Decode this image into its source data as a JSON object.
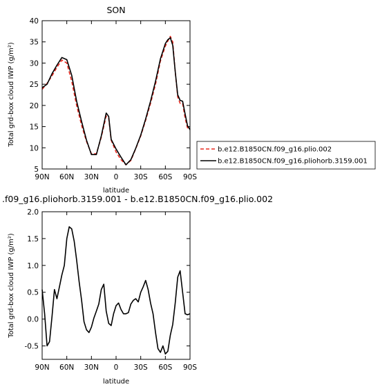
{
  "chart_data": [
    {
      "type": "line",
      "title": "SON",
      "xlabel": "latitude",
      "ylabel": "Total grd-box cloud IWP (g/m²)",
      "xlim": [
        90,
        -90
      ],
      "ylim": [
        5,
        40
      ],
      "x_ticks": [
        90,
        60,
        30,
        0,
        -30,
        -60,
        -90
      ],
      "x_tick_labels": [
        "90N",
        "60N",
        "30N",
        "0",
        "30S",
        "60S",
        "90S"
      ],
      "y_ticks": [
        5,
        10,
        15,
        20,
        25,
        30,
        35,
        40
      ],
      "y_tick_labels": [
        "5",
        "10",
        "15",
        "20",
        "25",
        "30",
        "35",
        "40"
      ],
      "legend_position": "right",
      "x": [
        90,
        84,
        78,
        72,
        66,
        60,
        54,
        48,
        42,
        36,
        30,
        24,
        18,
        12,
        9,
        6,
        0,
        -6,
        -12,
        -18,
        -24,
        -30,
        -36,
        -42,
        -48,
        -54,
        -60,
        -63,
        -66,
        -69,
        -72,
        -75,
        -78,
        -81,
        -84,
        -87,
        -90
      ],
      "series": [
        {
          "name": "b.e12.B1850CN.f09_g16.plio.002",
          "color": "#e8281e",
          "dash": "dashed",
          "values": [
            23.8,
            25.2,
            27.0,
            29.0,
            30.7,
            30.0,
            25.7,
            20.0,
            15.3,
            11.5,
            8.6,
            8.6,
            12.5,
            17.5,
            17.0,
            11.8,
            9.0,
            7.2,
            6.0,
            7.0,
            9.8,
            12.8,
            16.5,
            20.5,
            25.0,
            30.5,
            34.0,
            35.2,
            36.3,
            35.0,
            28.0,
            22.0,
            20.5,
            20.5,
            17.0,
            14.7,
            14.3
          ]
        },
        {
          "name": "b.e12.B1850CN.f09_g16.pliohorb.3159.001",
          "color": "#000000",
          "dash": "solid",
          "values": [
            24.2,
            25.0,
            27.5,
            29.5,
            31.3,
            30.8,
            27.1,
            21.0,
            16.2,
            11.8,
            8.4,
            8.4,
            12.8,
            18.2,
            17.4,
            12.0,
            9.7,
            7.8,
            6.0,
            7.2,
            9.9,
            13.0,
            16.8,
            21.0,
            25.7,
            31.0,
            34.6,
            35.5,
            36.0,
            34.2,
            28.0,
            22.5,
            21.2,
            21.0,
            18.0,
            15.2,
            14.3
          ]
        }
      ]
    },
    {
      "type": "line",
      "title": ".f09_g16.pliohorb.3159.001 - b.e12.B1850CN.f09_g16.plio.002",
      "xlabel": "latitude",
      "ylabel": "Total grd-box cloud IWP (g/m²)",
      "xlim": [
        90,
        -90
      ],
      "ylim": [
        -0.75,
        2.0
      ],
      "x_ticks": [
        90,
        60,
        30,
        0,
        -30,
        -60,
        -90
      ],
      "x_tick_labels": [
        "90N",
        "60N",
        "30N",
        "0",
        "30S",
        "60S",
        "90S"
      ],
      "y_ticks": [
        -0.5,
        0.0,
        0.5,
        1.0,
        1.5,
        2.0
      ],
      "y_tick_labels": [
        "-0.5",
        "0.0",
        "0.5",
        "1.0",
        "1.5",
        "2.0"
      ],
      "x": [
        90,
        87,
        84,
        81,
        78,
        75,
        72,
        69,
        66,
        63,
        60,
        57,
        54,
        51,
        48,
        45,
        42,
        39,
        36,
        33,
        30,
        27,
        24,
        21,
        18,
        15,
        12,
        9,
        6,
        3,
        0,
        -3,
        -6,
        -9,
        -12,
        -15,
        -18,
        -21,
        -24,
        -27,
        -30,
        -33,
        -36,
        -39,
        -42,
        -45,
        -48,
        -51,
        -54,
        -57,
        -60,
        -63,
        -66,
        -69,
        -72,
        -75,
        -78,
        -81,
        -84,
        -87,
        -90
      ],
      "series": [
        {
          "name": "",
          "color": "#000000",
          "dash": "solid",
          "values": [
            0.55,
            0.1,
            -0.5,
            -0.42,
            0.05,
            0.55,
            0.38,
            0.6,
            0.82,
            1.0,
            1.5,
            1.72,
            1.68,
            1.45,
            1.1,
            0.7,
            0.35,
            -0.05,
            -0.2,
            -0.25,
            -0.15,
            0.02,
            0.15,
            0.28,
            0.55,
            0.65,
            0.15,
            -0.08,
            -0.12,
            0.1,
            0.25,
            0.3,
            0.18,
            0.1,
            0.1,
            0.12,
            0.28,
            0.35,
            0.38,
            0.32,
            0.5,
            0.6,
            0.72,
            0.55,
            0.3,
            0.1,
            -0.25,
            -0.55,
            -0.62,
            -0.5,
            -0.65,
            -0.6,
            -0.3,
            -0.1,
            0.3,
            0.78,
            0.9,
            0.5,
            0.1,
            0.08,
            0.1
          ]
        }
      ]
    }
  ]
}
